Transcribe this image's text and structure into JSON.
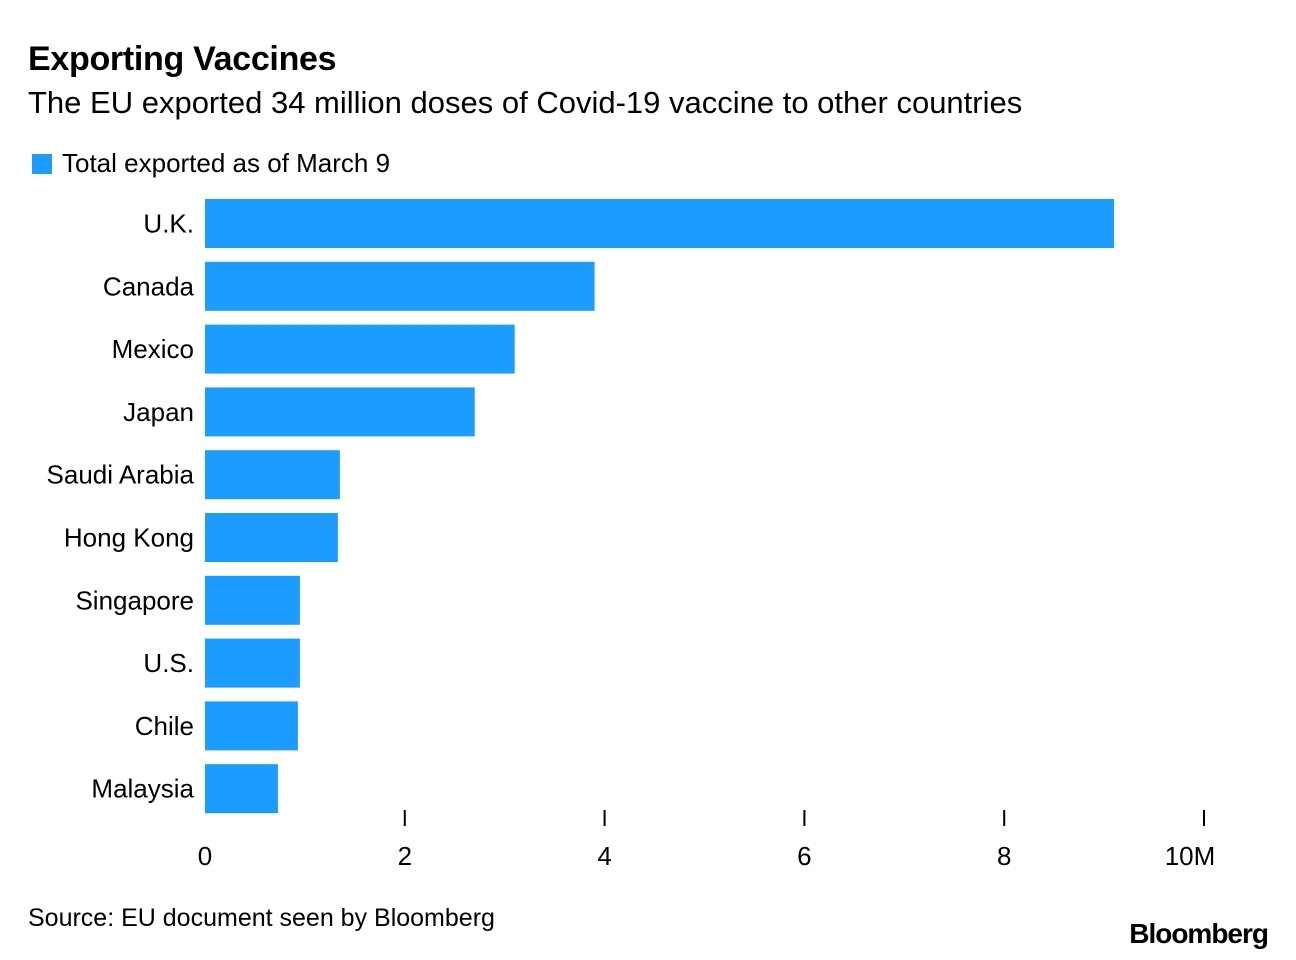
{
  "colors": {
    "bar": "#1c9cff",
    "text": "#000000",
    "background": "#ffffff"
  },
  "chart_data": {
    "type": "bar",
    "orientation": "horizontal",
    "title": "Exporting Vaccines",
    "subtitle": "The EU exported 34 million doses of Covid-19 vaccine to other countries",
    "legend": "Total exported as of March 9",
    "categories": [
      "U.K.",
      "Canada",
      "Mexico",
      "Japan",
      "Saudi Arabia",
      "Hong Kong",
      "Singapore",
      "U.S.",
      "Chile",
      "Malaysia"
    ],
    "values": [
      9.1,
      3.9,
      3.1,
      2.7,
      1.35,
      1.33,
      0.95,
      0.95,
      0.93,
      0.73
    ],
    "unit": "million doses",
    "xlim": [
      0,
      10
    ],
    "xticks": [
      0,
      2,
      4,
      6,
      8,
      10
    ],
    "xtick_labels": [
      "0",
      "2",
      "4",
      "6",
      "8",
      "10M"
    ],
    "source": "Source: EU document seen by Bloomberg"
  },
  "brand": "Bloomberg"
}
